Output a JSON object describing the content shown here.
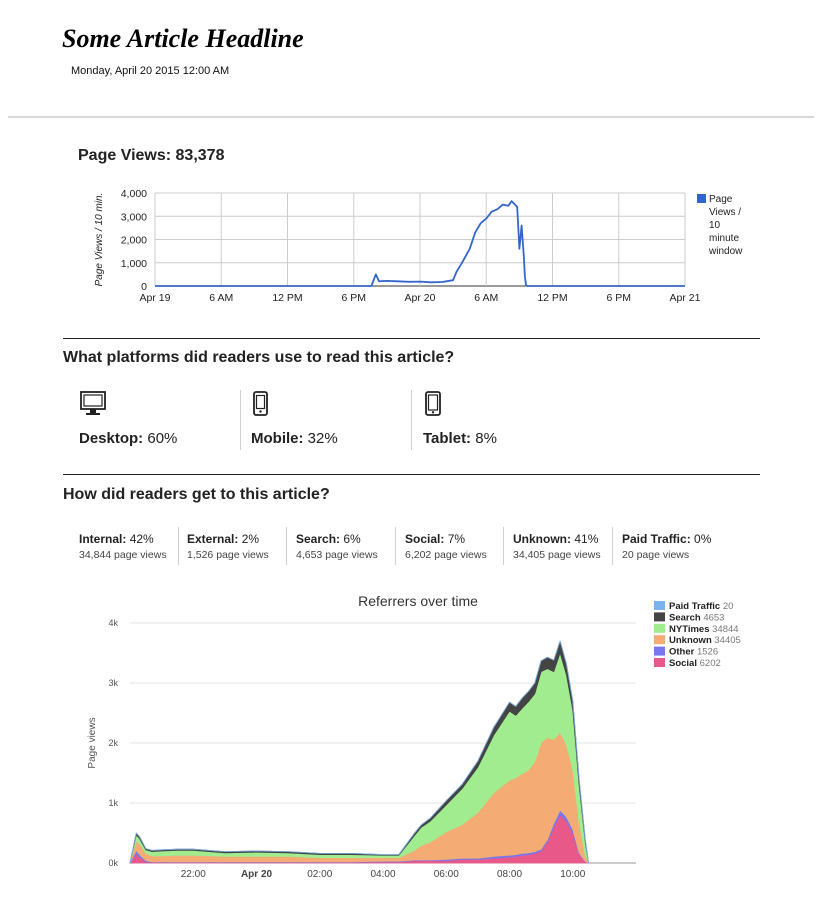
{
  "article": {
    "headline": "Some Article Headline",
    "dateline": "Monday, April 20 2015 12:00 AM"
  },
  "pageviews": {
    "title": "Page Views: 83,378"
  },
  "platforms": {
    "title": "What platforms did readers use to read this article?",
    "items": [
      {
        "label": "Desktop:",
        "value": "60%",
        "icon": "desktop-icon"
      },
      {
        "label": "Mobile:",
        "value": "32%",
        "icon": "mobile-icon"
      },
      {
        "label": "Tablet:",
        "value": "8%",
        "icon": "tablet-icon"
      }
    ]
  },
  "referrers": {
    "title": "How did readers get to this article?",
    "items": [
      {
        "label": "Internal:",
        "value": "42%",
        "views": "34,844 page views"
      },
      {
        "label": "External:",
        "value": "2%",
        "views": "1,526 page views"
      },
      {
        "label": "Search:",
        "value": "6%",
        "views": "4,653 page views"
      },
      {
        "label": "Social:",
        "value": "7%",
        "views": "6,202 page views"
      },
      {
        "label": "Unknown:",
        "value": "41%",
        "views": "34,405 page views"
      },
      {
        "label": "Paid Traffic:",
        "value": "0%",
        "views": "20 page views"
      }
    ]
  },
  "chart_data": [
    {
      "type": "line",
      "title": "",
      "xlabel": "",
      "ylabel": "Page Views / 10 min.",
      "ylim": [
        0,
        4000
      ],
      "yticks": [
        0,
        1000,
        2000,
        3000,
        4000
      ],
      "ytick_labels": [
        "0",
        "1,000",
        "2,000",
        "3,000",
        "4,000"
      ],
      "xlim_hours": [
        0,
        48
      ],
      "xticks_hours": [
        0,
        6,
        12,
        18,
        24,
        30,
        36,
        42,
        48
      ],
      "xtick_labels": [
        "Apr 19",
        "6 AM",
        "12 PM",
        "6 PM",
        "Apr 20",
        "6 AM",
        "12 PM",
        "6 PM",
        "Apr 21"
      ],
      "legend": "right",
      "series": [
        {
          "name": "Page Views / 10 minute window",
          "legend_lines": [
            "Page",
            "Views /",
            "10",
            "minute",
            "window"
          ],
          "color": "#3366cc",
          "x_hours": [
            0,
            19.6,
            20.0,
            20.3,
            21,
            22,
            23,
            24,
            25,
            26,
            27,
            27.3,
            27.8,
            28.5,
            29,
            29.5,
            30,
            30.5,
            31,
            31.5,
            32,
            32.3,
            32.6,
            32.8,
            33,
            33.2,
            33.4,
            33.5,
            33.6,
            33.7,
            48
          ],
          "y": [
            0,
            0,
            500,
            200,
            220,
            200,
            180,
            190,
            160,
            170,
            250,
            600,
            1000,
            1600,
            2300,
            2700,
            2900,
            3200,
            3300,
            3500,
            3450,
            3650,
            3500,
            3400,
            1600,
            2600,
            1300,
            400,
            50,
            0,
            0
          ]
        }
      ]
    },
    {
      "type": "area",
      "title": "Referrers over time",
      "ylabel": "Page views",
      "ylim": [
        0,
        4000
      ],
      "yticks": [
        0,
        1000,
        2000,
        3000,
        4000
      ],
      "ytick_labels": [
        "0k",
        "1k",
        "2k",
        "3k",
        "4k"
      ],
      "xlim_hours": [
        -4,
        12
      ],
      "xticks_hours": [
        -2,
        0,
        2,
        4,
        6,
        8,
        10
      ],
      "xtick_labels": [
        "22:00",
        "Apr 20",
        "02:00",
        "04:00",
        "06:00",
        "08:00",
        "10:00"
      ],
      "legend": "top-right",
      "legend_order": [
        "Paid Traffic",
        "Search",
        "NYTimes",
        "Unknown",
        "Other",
        "Social"
      ],
      "x_hours": [
        -4,
        -3.8,
        -3.7,
        -3.5,
        -3.3,
        -3.0,
        -2.5,
        -2,
        -1,
        0,
        1,
        2,
        3,
        4,
        4.5,
        5.0,
        5.2,
        5.5,
        6.0,
        6.5,
        7.0,
        7.5,
        8.0,
        8.2,
        8.4,
        8.6,
        8.8,
        9.0,
        9.2,
        9.4,
        9.6,
        9.8,
        10.0,
        10.2,
        10.4,
        10.5
      ],
      "series": [
        {
          "name": "Social",
          "total": "6202",
          "color": "#e85889",
          "values": [
            0,
            150,
            100,
            20,
            10,
            10,
            10,
            10,
            10,
            10,
            10,
            10,
            10,
            20,
            20,
            40,
            40,
            40,
            40,
            60,
            60,
            80,
            100,
            110,
            130,
            140,
            160,
            200,
            350,
            600,
            800,
            700,
            500,
            150,
            20,
            0
          ]
        },
        {
          "name": "Other",
          "total": "1526",
          "color": "#7777ee",
          "values": [
            0,
            60,
            40,
            20,
            10,
            10,
            10,
            10,
            10,
            10,
            10,
            10,
            10,
            10,
            10,
            10,
            10,
            10,
            20,
            20,
            20,
            30,
            30,
            30,
            30,
            30,
            30,
            30,
            40,
            60,
            80,
            70,
            60,
            20,
            5,
            0
          ]
        },
        {
          "name": "Unknown",
          "total": "34405",
          "color": "#f4ab74",
          "values": [
            0,
            160,
            180,
            120,
            100,
            100,
            110,
            110,
            90,
            90,
            90,
            70,
            70,
            60,
            60,
            160,
            240,
            300,
            460,
            560,
            760,
            1060,
            1250,
            1280,
            1330,
            1380,
            1500,
            1770,
            1700,
            1400,
            1300,
            1200,
            1000,
            500,
            100,
            0
          ]
        },
        {
          "name": "NYTimes",
          "total": "34844",
          "color": "#a0ec8e",
          "values": [
            0,
            100,
            90,
            60,
            70,
            80,
            80,
            80,
            60,
            70,
            60,
            50,
            50,
            40,
            40,
            250,
            300,
            350,
            450,
            600,
            760,
            960,
            1150,
            1040,
            1090,
            1140,
            1130,
            1190,
            1150,
            1130,
            1320,
            1170,
            990,
            630,
            200,
            0
          ]
        },
        {
          "name": "Search",
          "total": "4653",
          "color": "#444444",
          "values": [
            0,
            30,
            30,
            20,
            20,
            20,
            20,
            20,
            20,
            20,
            20,
            20,
            20,
            10,
            10,
            40,
            40,
            50,
            70,
            70,
            100,
            130,
            150,
            150,
            170,
            170,
            180,
            180,
            190,
            190,
            200,
            180,
            150,
            100,
            40,
            0
          ]
        },
        {
          "name": "Paid Traffic",
          "total": "20",
          "color": "#7bb3ef",
          "values": [
            0,
            0,
            0,
            0,
            0,
            0,
            0,
            0,
            0,
            0,
            0,
            0,
            0,
            0,
            0,
            0,
            0,
            0,
            0,
            0,
            0,
            0,
            0,
            0,
            0,
            0,
            0,
            0,
            0,
            0,
            0,
            0,
            0,
            0,
            0,
            0
          ]
        }
      ]
    }
  ],
  "icons": {
    "desktop": "desktop-icon",
    "mobile": "mobile-icon",
    "tablet": "tablet-icon"
  },
  "colors": {
    "line": "#3366cc",
    "grid": "#cccccc",
    "text": "#222222"
  }
}
